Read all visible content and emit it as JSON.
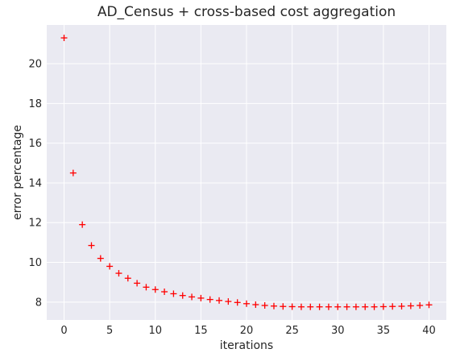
{
  "chart_data": {
    "type": "scatter",
    "title": "AD_Census + cross-based cost aggregation",
    "xlabel": "iterations",
    "ylabel": "error percentage",
    "xlim": [
      -1.9,
      41.9
    ],
    "ylim": [
      7.1,
      21.95
    ],
    "xticks": [
      0,
      5,
      10,
      15,
      20,
      25,
      30,
      35,
      40
    ],
    "yticks": [
      8,
      10,
      12,
      14,
      16,
      18,
      20
    ],
    "grid": true,
    "marker": "+",
    "marker_color": "#ff0000",
    "background_color": "#eaeaf2",
    "series": [
      {
        "x": [
          0,
          1,
          2,
          3,
          4,
          5,
          6,
          7,
          8,
          9,
          10,
          11,
          12,
          13,
          14,
          15,
          16,
          17,
          18,
          19,
          20,
          21,
          22,
          23,
          24,
          25,
          26,
          27,
          28,
          29,
          30,
          31,
          32,
          33,
          34,
          35,
          36,
          37,
          38,
          39,
          40
        ],
        "y": [
          21.3,
          14.5,
          11.9,
          10.85,
          10.2,
          9.8,
          9.45,
          9.2,
          8.95,
          8.75,
          8.63,
          8.52,
          8.42,
          8.33,
          8.26,
          8.2,
          8.13,
          8.08,
          8.03,
          7.98,
          7.92,
          7.87,
          7.83,
          7.8,
          7.78,
          7.77,
          7.76,
          7.76,
          7.76,
          7.76,
          7.76,
          7.76,
          7.76,
          7.76,
          7.76,
          7.77,
          7.78,
          7.79,
          7.81,
          7.83,
          7.86
        ]
      }
    ]
  }
}
